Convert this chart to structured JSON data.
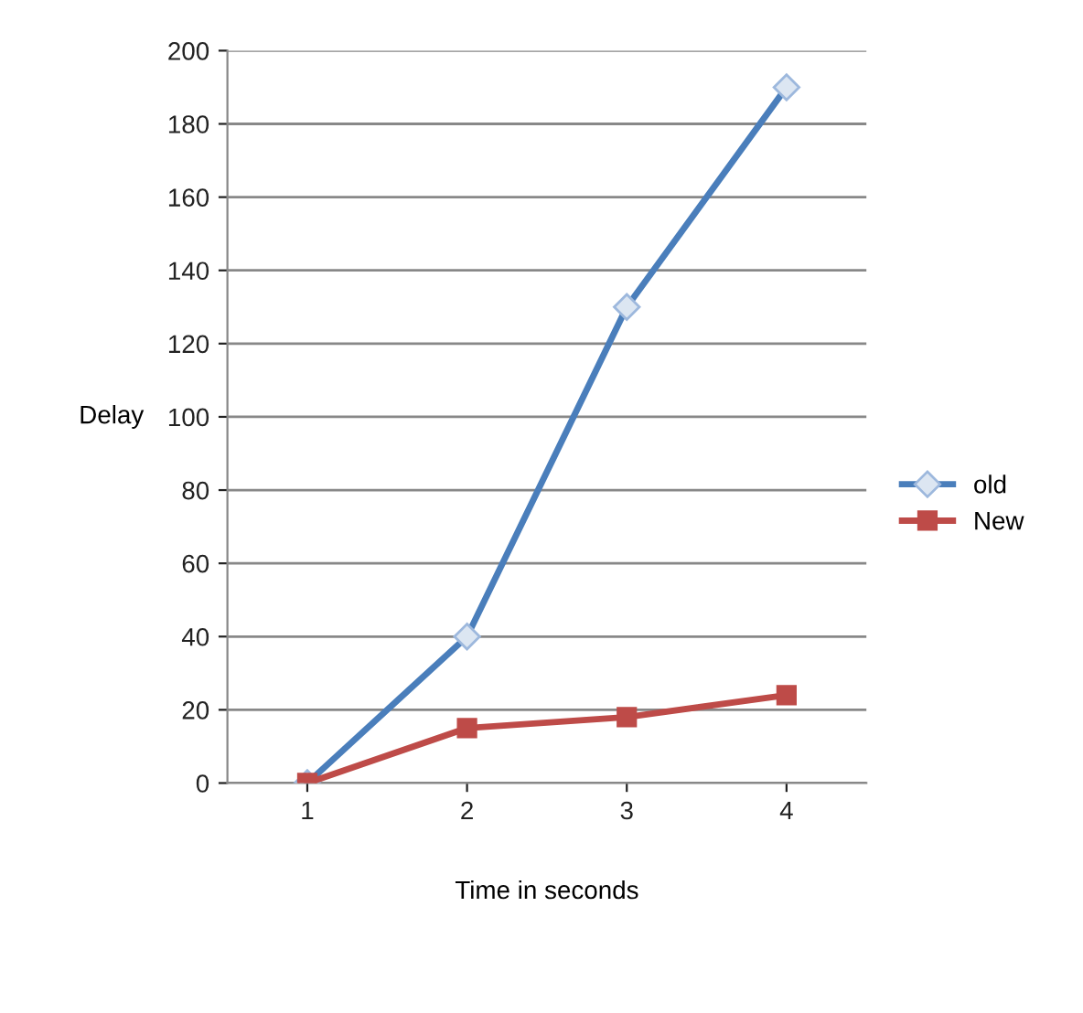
{
  "chart_data": {
    "type": "line",
    "xlabel": "Time in seconds",
    "ylabel": "Delay",
    "categories": [
      "1",
      "2",
      "3",
      "4"
    ],
    "series": [
      {
        "name": "old",
        "color": "#4a7ebb",
        "values": [
          0,
          40,
          130,
          190
        ],
        "marker": "diamond"
      },
      {
        "name": "New",
        "color": "#be4b48",
        "values": [
          0,
          15,
          18,
          24
        ],
        "marker": "square"
      }
    ],
    "ylim": [
      0,
      200
    ],
    "yticks": [
      0,
      20,
      40,
      60,
      80,
      100,
      120,
      140,
      160,
      180,
      200
    ],
    "grid": "y",
    "legend": "right"
  }
}
